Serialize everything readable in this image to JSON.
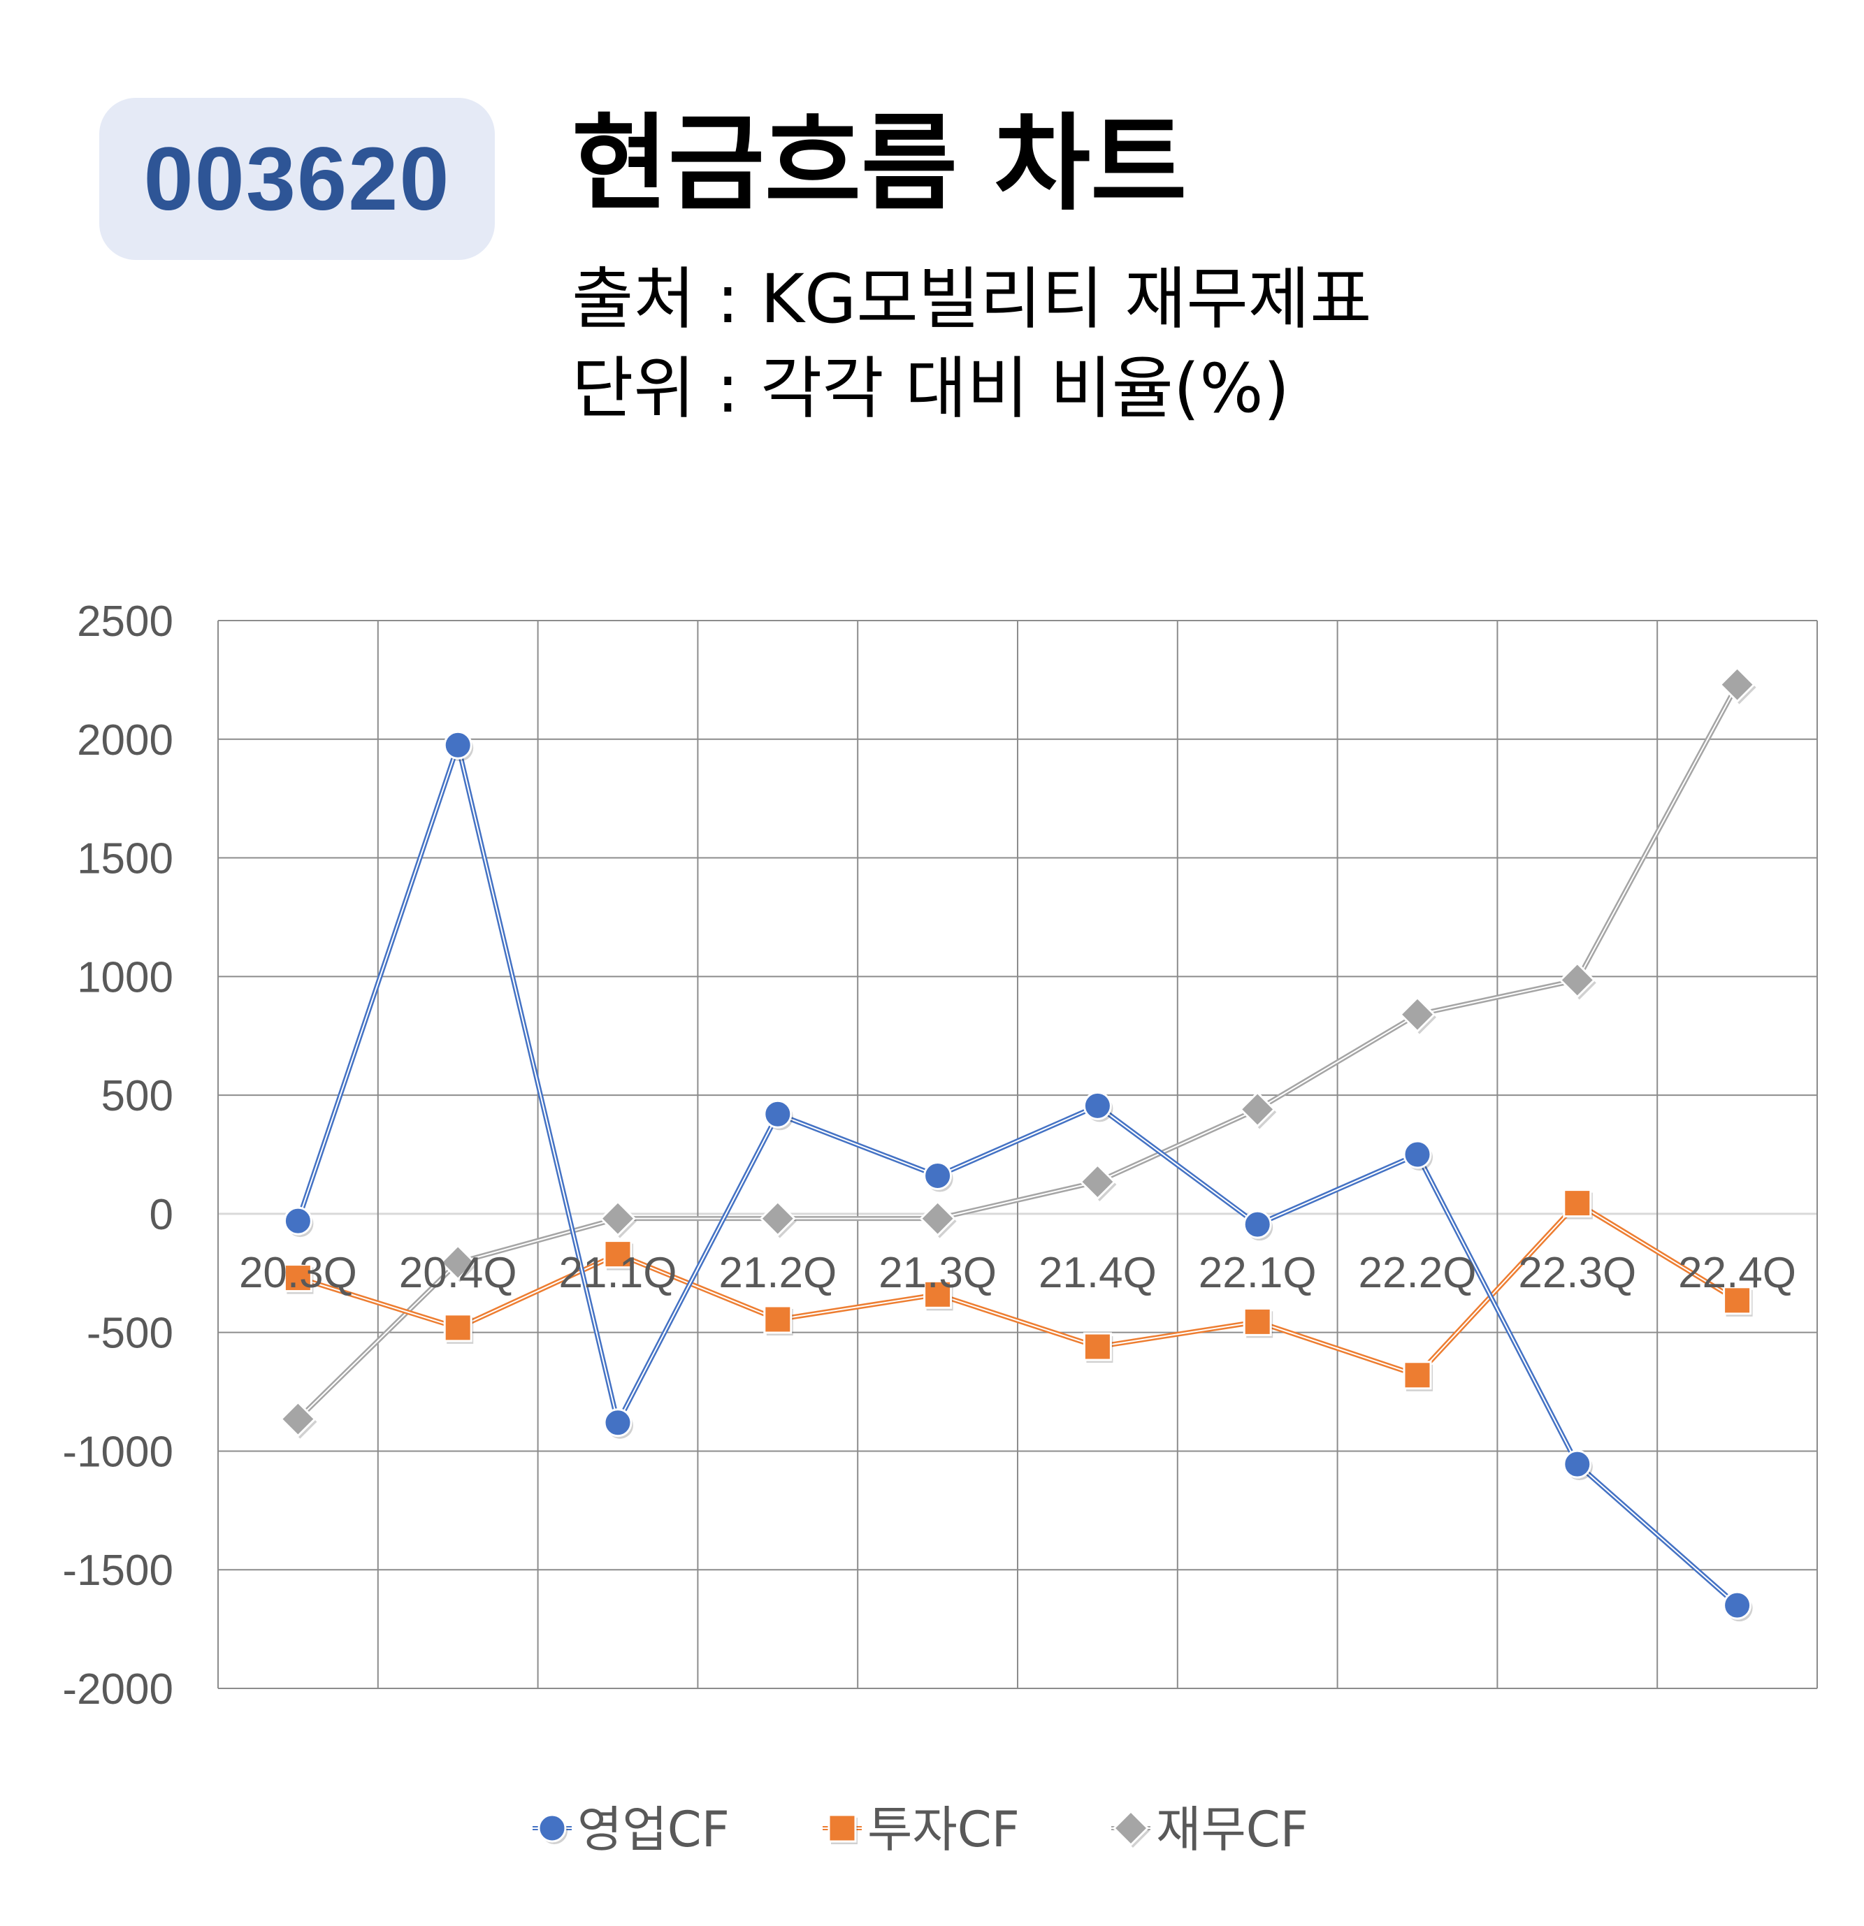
{
  "badge": {
    "code": "003620"
  },
  "header": {
    "title": "현금흐름 차트",
    "source": "출처 : KG모빌리티 재무제표",
    "unit": "단위 : 각각 대비 비율(%)"
  },
  "chart_data": {
    "type": "line",
    "categories": [
      "20.3Q",
      "20.4Q",
      "21.1Q",
      "21.2Q",
      "21.3Q",
      "21.4Q",
      "22.1Q",
      "22.2Q",
      "22.3Q",
      "22.4Q"
    ],
    "ylim": [
      -2000,
      2500
    ],
    "yticks": [
      2500,
      2000,
      1500,
      1000,
      500,
      0,
      -500,
      -1000,
      -1500,
      -2000
    ],
    "grid": true,
    "legend_position": "bottom",
    "series": [
      {
        "name": "영업CF",
        "marker": "circle",
        "color": "#4472c4",
        "values": [
          -30,
          1975,
          -880,
          420,
          160,
          455,
          -45,
          250,
          -1055,
          -1650
        ]
      },
      {
        "name": "투자CF",
        "marker": "square",
        "color": "#ed7d31",
        "values": [
          -270,
          -480,
          -170,
          -445,
          -340,
          -560,
          -455,
          -680,
          45,
          -365
        ]
      },
      {
        "name": "재무CF",
        "marker": "diamond",
        "color": "#a5a5a5",
        "values": [
          -865,
          -205,
          -20,
          -20,
          -20,
          135,
          440,
          840,
          985,
          2230
        ]
      }
    ]
  }
}
